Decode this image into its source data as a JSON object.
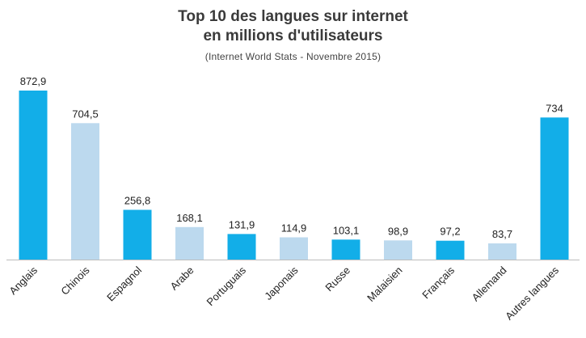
{
  "chart_data": {
    "type": "bar",
    "title_line1": "Top 10 des langues sur internet",
    "title_line2": "en millions d'utilisateurs",
    "subtitle": "(Internet World Stats - Novembre 2015)",
    "categories": [
      "Anglais",
      "Chinois",
      "Espagnol",
      "Arabe",
      "Portuguais",
      "Japonais",
      "Russe",
      "Malaisien",
      "Français",
      "Allemand",
      "Autres langues"
    ],
    "values": [
      872.9,
      704.5,
      256.8,
      168.1,
      131.9,
      114.9,
      103.1,
      98.9,
      97.2,
      83.7,
      734
    ],
    "value_labels": [
      "872,9",
      "704,5",
      "256,8",
      "168,1",
      "131,9",
      "114,9",
      "103,1",
      "98,9",
      "97,2",
      "83,7",
      "734"
    ],
    "bar_colors": [
      "#12aee8",
      "#bcd9ee",
      "#12aee8",
      "#bcd9ee",
      "#12aee8",
      "#bcd9ee",
      "#12aee8",
      "#bcd9ee",
      "#12aee8",
      "#bcd9ee",
      "#12aee8"
    ],
    "xlabel": "",
    "ylabel": "",
    "ylim": [
      0,
      872.9
    ],
    "grid": false,
    "legend": "none"
  }
}
